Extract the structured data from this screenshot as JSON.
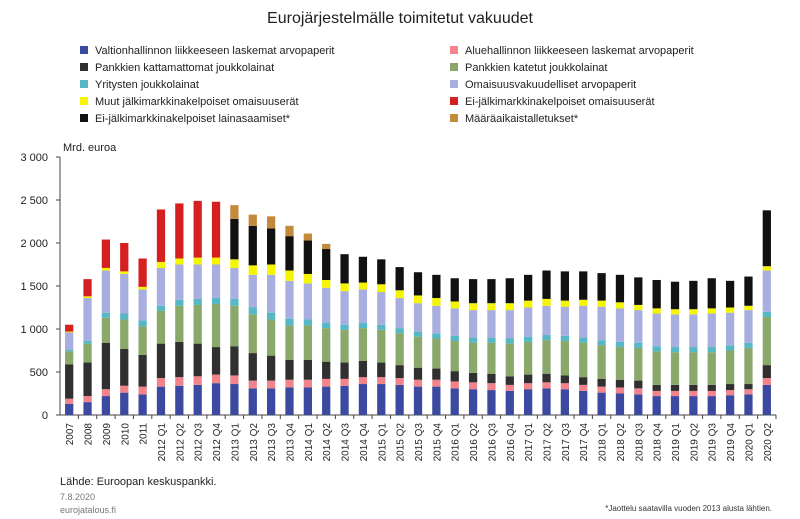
{
  "chart_data": {
    "type": "bar",
    "stacked": true,
    "title": "Eurojärjestelmälle toimitetut vakuudet",
    "ylabel": "Mrd. euroa",
    "ylim": [
      0,
      3000
    ],
    "yticks": [
      0,
      500,
      1000,
      1500,
      2000,
      2500,
      3000
    ],
    "ytick_labels": [
      "0",
      "500",
      "1 000",
      "1 500",
      "2 000",
      "2 500",
      "3 000"
    ],
    "grid": false,
    "legend_position": "top",
    "categories": [
      "2007",
      "2008",
      "2009",
      "2010",
      "2011",
      "2012 Q1",
      "2012 Q2",
      "2012 Q3",
      "2012 Q4",
      "2013 Q1",
      "2013 Q2",
      "2013 Q3",
      "2013 Q4",
      "2014 Q1",
      "2014 Q2",
      "2014 Q3",
      "2014 Q4",
      "2015 Q1",
      "2015 Q2",
      "2015 Q3",
      "2015 Q4",
      "2016 Q1",
      "2016 Q2",
      "2016 Q3",
      "2016 Q4",
      "2017 Q1",
      "2017 Q2",
      "2017 Q3",
      "2017 Q4",
      "2018 Q1",
      "2018 Q2",
      "2018 Q3",
      "2018 Q4",
      "2019 Q1",
      "2019 Q2",
      "2019 Q3",
      "2019 Q4",
      "2020 Q1",
      "2020 Q2"
    ],
    "series": [
      {
        "name": "Valtionhallinnon liikkeeseen laskemat arvopaperit",
        "color": "#3b4aa0",
        "values": [
          130,
          150,
          220,
          260,
          240,
          330,
          340,
          350,
          370,
          360,
          310,
          310,
          320,
          320,
          330,
          340,
          360,
          360,
          350,
          330,
          330,
          310,
          300,
          290,
          280,
          300,
          310,
          300,
          280,
          260,
          250,
          240,
          220,
          220,
          220,
          220,
          230,
          240,
          350
        ]
      },
      {
        "name": "Aluehallinnon liikkeeseen laskemat arvopaperit",
        "color": "#f0848a",
        "values": [
          60,
          70,
          80,
          80,
          90,
          100,
          100,
          100,
          100,
          100,
          90,
          90,
          90,
          90,
          90,
          80,
          80,
          80,
          80,
          80,
          80,
          80,
          80,
          80,
          70,
          70,
          70,
          70,
          70,
          70,
          70,
          70,
          60,
          60,
          60,
          60,
          60,
          60,
          80
        ]
      },
      {
        "name": "Pankkien kattamattomat joukkolainat",
        "color": "#303030",
        "values": [
          400,
          390,
          540,
          430,
          370,
          400,
          410,
          380,
          320,
          340,
          320,
          290,
          230,
          230,
          200,
          190,
          190,
          170,
          150,
          140,
          130,
          120,
          110,
          110,
          100,
          100,
          100,
          90,
          90,
          90,
          90,
          90,
          70,
          70,
          70,
          70,
          70,
          60,
          150
        ]
      },
      {
        "name": "Pankkien katetut joukkolainat",
        "color": "#8aa86a",
        "values": [
          150,
          220,
          290,
          340,
          330,
          380,
          420,
          450,
          500,
          470,
          450,
          420,
          400,
          400,
          390,
          380,
          380,
          380,
          370,
          360,
          350,
          350,
          350,
          360,
          380,
          380,
          390,
          400,
          400,
          390,
          380,
          380,
          390,
          380,
          380,
          380,
          390,
          420,
          560
        ]
      },
      {
        "name": "Yritysten joukkolainat",
        "color": "#55b8c4",
        "values": [
          20,
          30,
          60,
          70,
          70,
          60,
          70,
          70,
          70,
          80,
          80,
          80,
          80,
          70,
          60,
          60,
          60,
          60,
          60,
          60,
          60,
          60,
          60,
          60,
          60,
          60,
          60,
          60,
          60,
          60,
          60,
          60,
          60,
          60,
          60,
          60,
          60,
          60,
          60
        ]
      },
      {
        "name": "Omaisuusvakuudelliset arvopaperit",
        "color": "#a8afe0",
        "values": [
          200,
          500,
          490,
          460,
          360,
          440,
          410,
          400,
          390,
          360,
          380,
          440,
          440,
          420,
          410,
          390,
          390,
          380,
          350,
          330,
          320,
          320,
          320,
          320,
          330,
          340,
          340,
          340,
          370,
          390,
          390,
          380,
          380,
          380,
          380,
          390,
          380,
          380,
          480
        ]
      },
      {
        "name": "Muut jälkimarkkinakelpoiset omaisuuserät",
        "color": "#f5f500",
        "values": [
          10,
          20,
          30,
          30,
          30,
          70,
          70,
          80,
          80,
          100,
          110,
          120,
          120,
          110,
          90,
          90,
          80,
          90,
          90,
          90,
          90,
          80,
          80,
          80,
          80,
          80,
          80,
          70,
          70,
          70,
          70,
          60,
          60,
          60,
          60,
          60,
          60,
          50,
          50
        ]
      },
      {
        "name": "Ei-jälkimarkkinakelpoiset omaisuuserät",
        "color": "#d62020",
        "values": [
          80,
          200,
          330,
          330,
          330,
          610,
          640,
          660,
          650,
          0,
          0,
          0,
          0,
          0,
          0,
          0,
          0,
          0,
          0,
          0,
          0,
          0,
          0,
          0,
          0,
          0,
          0,
          0,
          0,
          0,
          0,
          0,
          0,
          0,
          0,
          0,
          0,
          0,
          0
        ]
      },
      {
        "name": "Ei-jälkimarkkinakelpoiset lainasaamiset*",
        "color": "#111111",
        "values": [
          0,
          0,
          0,
          0,
          0,
          0,
          0,
          0,
          0,
          470,
          460,
          420,
          400,
          390,
          360,
          340,
          300,
          290,
          270,
          270,
          270,
          270,
          280,
          280,
          290,
          300,
          330,
          340,
          330,
          320,
          320,
          320,
          330,
          320,
          330,
          350,
          310,
          340,
          650
        ]
      },
      {
        "name": "Määräaikaistalletukset*",
        "color": "#c48a3c",
        "values": [
          0,
          0,
          0,
          0,
          0,
          0,
          0,
          0,
          0,
          160,
          130,
          140,
          120,
          80,
          60,
          0,
          0,
          0,
          0,
          0,
          0,
          0,
          0,
          0,
          0,
          0,
          0,
          0,
          0,
          0,
          0,
          0,
          0,
          0,
          0,
          0,
          0,
          0,
          0
        ]
      }
    ]
  },
  "footer": {
    "source": "Lähde: Euroopan keskuspankki.",
    "date": "7.8.2020",
    "site": "eurojatalous.fi",
    "footnote": "*Jaottelu saatavilla vuoden 2013 alusta lähtien."
  }
}
